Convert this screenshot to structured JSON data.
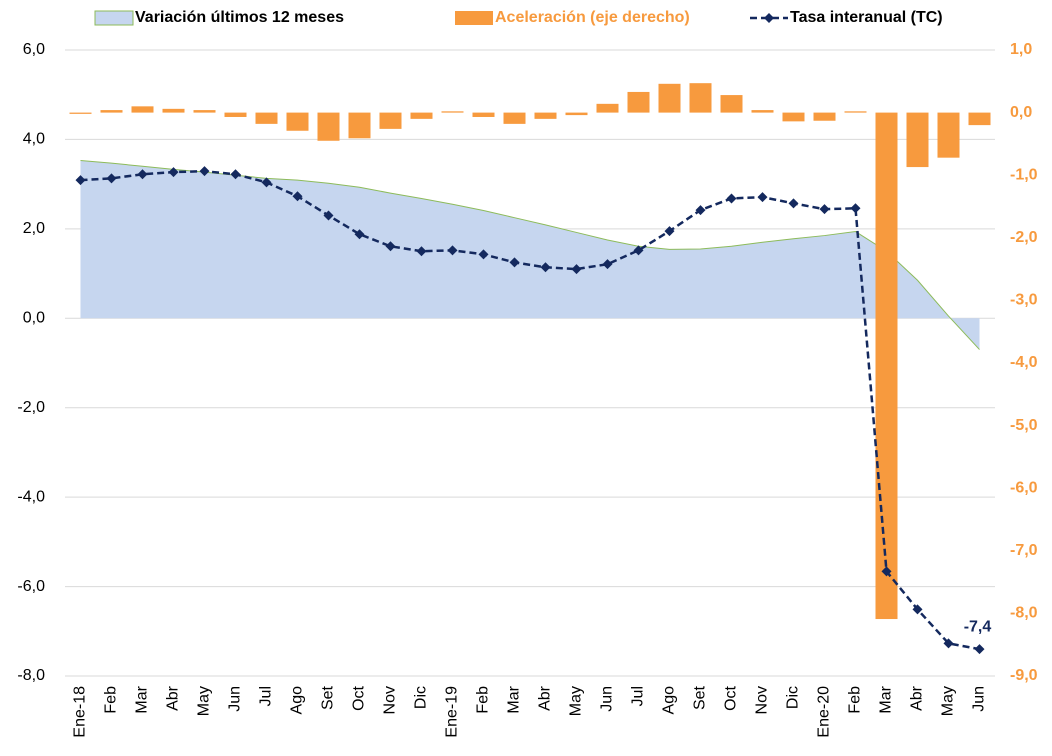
{
  "chart_data": {
    "type": "combo",
    "categories": [
      "Ene-18",
      "Feb",
      "Mar",
      "Abr",
      "May",
      "Jun",
      "Jul",
      "Ago",
      "Set",
      "Oct",
      "Nov",
      "Dic",
      "Ene-19",
      "Feb",
      "Mar",
      "Abr",
      "May",
      "Jun",
      "Jul",
      "Ago",
      "Set",
      "Oct",
      "Nov",
      "Dic",
      "Ene-20",
      "Feb",
      "Mar",
      "Abr",
      "May",
      "Jun"
    ],
    "series": [
      {
        "name": "Variación últimos 12 meses",
        "type": "area",
        "color": "#c6d6ef",
        "edge_color": "#8dbb5a",
        "axis": "y",
        "values": [
          3.53,
          3.47,
          3.4,
          3.33,
          3.27,
          3.2,
          3.13,
          3.09,
          3.02,
          2.93,
          2.8,
          2.68,
          2.55,
          2.41,
          2.25,
          2.09,
          1.92,
          1.75,
          1.61,
          1.54,
          1.55,
          1.61,
          1.7,
          1.78,
          1.85,
          1.94,
          1.5,
          0.85,
          0.05,
          -0.7
        ]
      },
      {
        "name": "Aceleración (eje derecho)",
        "type": "bar",
        "color": "#f79a3e",
        "axis": "y2",
        "values": [
          -0.02,
          0.04,
          0.1,
          0.06,
          0.04,
          -0.07,
          -0.18,
          -0.29,
          -0.45,
          -0.41,
          -0.26,
          -0.1,
          0.02,
          -0.07,
          -0.18,
          -0.1,
          -0.04,
          0.14,
          0.33,
          0.46,
          0.47,
          0.28,
          0.04,
          -0.14,
          -0.13,
          0.02,
          -8.09,
          -0.87,
          -0.72,
          -0.2
        ]
      },
      {
        "name": "Tasa interanual (TC)",
        "type": "line",
        "color": "#14295e",
        "axis": "y",
        "values": [
          3.09,
          3.13,
          3.22,
          3.27,
          3.29,
          3.22,
          3.04,
          2.73,
          2.3,
          1.88,
          1.61,
          1.5,
          1.52,
          1.43,
          1.25,
          1.14,
          1.1,
          1.21,
          1.52,
          1.95,
          2.42,
          2.68,
          2.71,
          2.57,
          2.44,
          2.46,
          -5.66,
          -6.51,
          -7.27,
          -7.4
        ],
        "value_labels": [
          null,
          null,
          null,
          null,
          null,
          null,
          null,
          null,
          null,
          null,
          null,
          null,
          null,
          null,
          null,
          null,
          null,
          null,
          null,
          null,
          null,
          null,
          null,
          null,
          null,
          null,
          null,
          null,
          null,
          "-7,4"
        ]
      }
    ],
    "ylim": [
      -8,
      6
    ],
    "yticks": [
      {
        "value": -8,
        "label": "-8,0"
      },
      {
        "value": -6,
        "label": "-6,0"
      },
      {
        "value": -4,
        "label": "-4,0"
      },
      {
        "value": -2,
        "label": "-2,0"
      },
      {
        "value": 0,
        "label": "0,0"
      },
      {
        "value": 2,
        "label": "2,0"
      },
      {
        "value": 4,
        "label": "4,0"
      },
      {
        "value": 6,
        "label": "6,0"
      }
    ],
    "y2lim": [
      -9,
      1
    ],
    "y2ticks": [
      {
        "value": -9,
        "label": "-9,0"
      },
      {
        "value": -8,
        "label": "-8,0"
      },
      {
        "value": -7,
        "label": "-7,0"
      },
      {
        "value": -6,
        "label": "-6,0"
      },
      {
        "value": -5,
        "label": "-5,0"
      },
      {
        "value": -4,
        "label": "-4,0"
      },
      {
        "value": -3,
        "label": "-3,0"
      },
      {
        "value": -2,
        "label": "-2,0"
      },
      {
        "value": -1,
        "label": "-1,0"
      },
      {
        "value": 0,
        "label": "0,0"
      },
      {
        "value": 1,
        "label": "1,0"
      }
    ],
    "grid": true,
    "legend": "top"
  }
}
